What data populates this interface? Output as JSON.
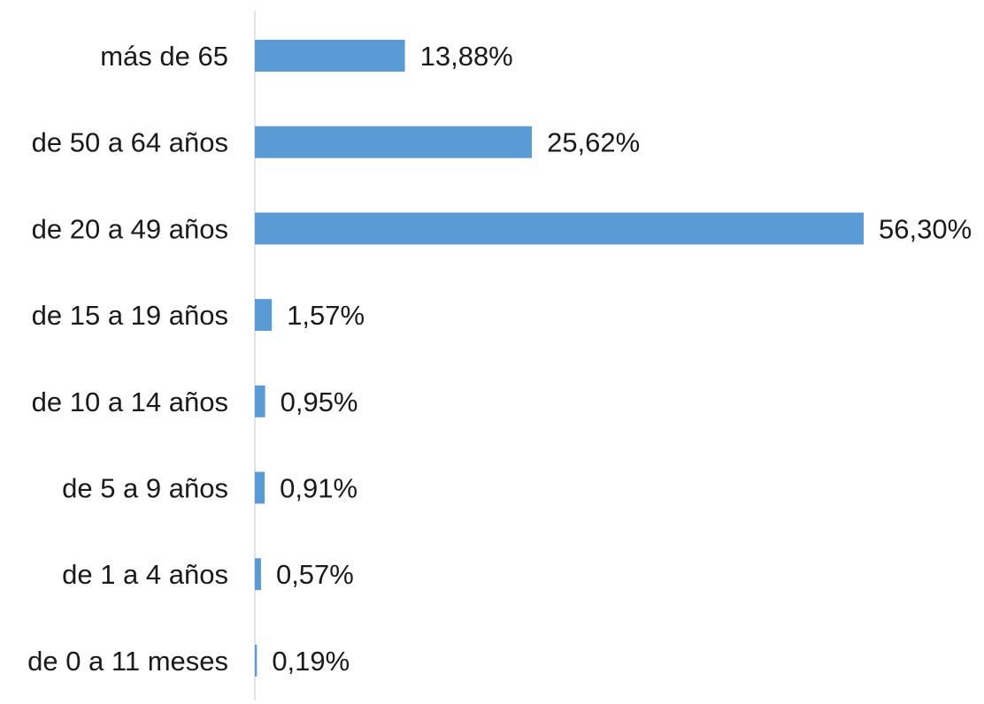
{
  "chart_data": {
    "type": "bar",
    "orientation": "horizontal",
    "title": "",
    "xlabel": "",
    "ylabel": "",
    "categories": [
      "más de 65",
      "de 50 a 64 años",
      "de 20 a 49 años",
      "de 15 a 19 años",
      "de 10 a 14 años",
      "de 5 a 9 años",
      "de 1 a 4 años",
      "de 0 a 11 meses"
    ],
    "values": [
      13.88,
      25.62,
      56.3,
      1.57,
      0.95,
      0.91,
      0.57,
      0.19
    ],
    "value_labels": [
      "13,88%",
      "25,62%",
      "56,30%",
      "1,57%",
      "0,95%",
      "0,91%",
      "0,57%",
      "0,19%"
    ],
    "xlim": [
      0,
      56.3
    ],
    "grid": false,
    "legend": "none",
    "bar_color": "#5B9BD5",
    "axis_color": "#d9d9d9"
  }
}
